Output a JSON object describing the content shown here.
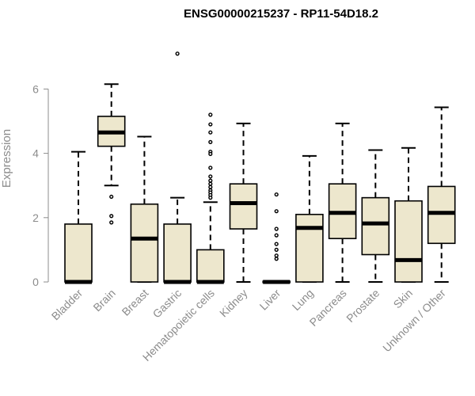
{
  "chart_data": {
    "type": "boxplot",
    "title": "ENSG00000215237 - RP11-54D18.2",
    "ylabel": "Expression",
    "xlabel": "",
    "ylim": [
      0,
      6.2
    ],
    "yticks": [
      0,
      2,
      4,
      6
    ],
    "box_fill": "#ede7cd",
    "axis_color": "#8c8c8c",
    "categories": [
      "Bladder",
      "Brain",
      "Breast",
      "Gastric",
      "Hematopoietic cells",
      "Kidney",
      "Liver",
      "Lung",
      "Pancreas",
      "Prostate",
      "Skin",
      "Unknown / Other"
    ],
    "boxes": [
      {
        "q1": 0,
        "median": 0,
        "q3": 1.8,
        "whisker_low": 0,
        "whisker_high": 4.05,
        "outliers": []
      },
      {
        "q1": 4.22,
        "median": 4.65,
        "q3": 5.15,
        "whisker_low": 3.0,
        "whisker_high": 6.15,
        "outliers": [
          2.65,
          2.05,
          1.85
        ]
      },
      {
        "q1": 0,
        "median": 1.35,
        "q3": 2.42,
        "whisker_low": 0,
        "whisker_high": 4.52,
        "outliers": []
      },
      {
        "q1": 0,
        "median": 0,
        "q3": 1.8,
        "whisker_low": 0,
        "whisker_high": 2.62,
        "outliers": [
          7.1
        ]
      },
      {
        "q1": 0,
        "median": 0,
        "q3": 1.0,
        "whisker_low": 0,
        "whisker_high": 2.48,
        "outliers": [
          5.2,
          4.9,
          4.65,
          4.35,
          4.05,
          3.98,
          3.55,
          3.28,
          3.15,
          3.05,
          2.95,
          2.85,
          2.78,
          2.7,
          2.62
        ]
      },
      {
        "q1": 1.65,
        "median": 2.45,
        "q3": 3.05,
        "whisker_low": 0,
        "whisker_high": 4.93,
        "outliers": []
      },
      {
        "q1": 0,
        "median": 0,
        "q3": 0.02,
        "whisker_low": 0,
        "whisker_high": 0.02,
        "outliers": [
          2.72,
          2.2,
          1.65,
          1.45,
          1.18,
          1.0,
          0.82,
          0.72
        ]
      },
      {
        "q1": 0,
        "median": 1.68,
        "q3": 2.1,
        "whisker_low": 0,
        "whisker_high": 3.92,
        "outliers": []
      },
      {
        "q1": 1.35,
        "median": 2.15,
        "q3": 3.05,
        "whisker_low": 0,
        "whisker_high": 4.93,
        "outliers": []
      },
      {
        "q1": 0.85,
        "median": 1.82,
        "q3": 2.62,
        "whisker_low": 0,
        "whisker_high": 4.1,
        "outliers": []
      },
      {
        "q1": 0,
        "median": 0.68,
        "q3": 2.52,
        "whisker_low": 0,
        "whisker_high": 4.17,
        "outliers": []
      },
      {
        "q1": 1.2,
        "median": 2.15,
        "q3": 2.97,
        "whisker_low": 0,
        "whisker_high": 5.43,
        "outliers": []
      }
    ]
  }
}
